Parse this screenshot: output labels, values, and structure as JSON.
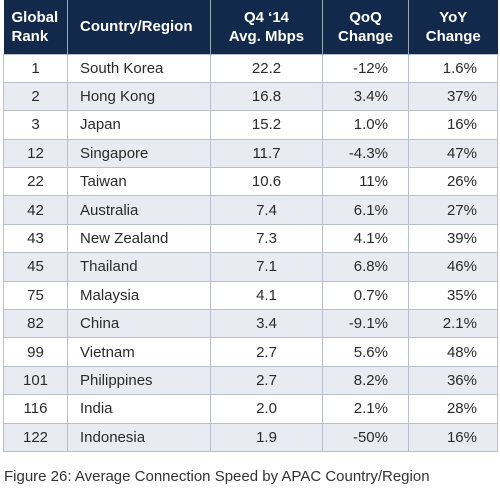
{
  "table": {
    "headers": {
      "rank": [
        "Global",
        "Rank"
      ],
      "country": [
        "Country/Region"
      ],
      "speed": [
        "Q4 ‘14",
        "Avg. Mbps"
      ],
      "qoq": [
        "QoQ",
        "Change"
      ],
      "yoy": [
        "YoY",
        "Change"
      ]
    },
    "rows": [
      {
        "rank": "1",
        "country": "South Korea",
        "speed": "22.2",
        "qoq": "-12%",
        "yoy": "1.6%"
      },
      {
        "rank": "2",
        "country": "Hong Kong",
        "speed": "16.8",
        "qoq": "3.4%",
        "yoy": "37%"
      },
      {
        "rank": "3",
        "country": "Japan",
        "speed": "15.2",
        "qoq": "1.0%",
        "yoy": "16%"
      },
      {
        "rank": "12",
        "country": "Singapore",
        "speed": "11.7",
        "qoq": "-4.3%",
        "yoy": "47%"
      },
      {
        "rank": "22",
        "country": "Taiwan",
        "speed": "10.6",
        "qoq": "11%",
        "yoy": "26%"
      },
      {
        "rank": "42",
        "country": "Australia",
        "speed": "7.4",
        "qoq": "6.1%",
        "yoy": "27%"
      },
      {
        "rank": "43",
        "country": "New Zealand",
        "speed": "7.3",
        "qoq": "4.1%",
        "yoy": "39%"
      },
      {
        "rank": "45",
        "country": "Thailand",
        "speed": "7.1",
        "qoq": "6.8%",
        "yoy": "46%"
      },
      {
        "rank": "75",
        "country": "Malaysia",
        "speed": "4.1",
        "qoq": "0.7%",
        "yoy": "35%"
      },
      {
        "rank": "82",
        "country": "China",
        "speed": "3.4",
        "qoq": "-9.1%",
        "yoy": "2.1%"
      },
      {
        "rank": "99",
        "country": "Vietnam",
        "speed": "2.7",
        "qoq": "5.6%",
        "yoy": "48%"
      },
      {
        "rank": "101",
        "country": "Philippines",
        "speed": "2.7",
        "qoq": "8.2%",
        "yoy": "36%"
      },
      {
        "rank": "116",
        "country": "India",
        "speed": "2.0",
        "qoq": "2.1%",
        "yoy": "28%"
      },
      {
        "rank": "122",
        "country": "Indonesia",
        "speed": "1.9",
        "qoq": "-50%",
        "yoy": "16%"
      }
    ]
  },
  "caption": "Figure 26: Average Connection Speed by APAC Country/Region",
  "colors": {
    "header_bg": "#13294b",
    "header_text": "#ffffff",
    "stripe_bg": "#e8ebf1",
    "border": "#b9c0cc"
  }
}
